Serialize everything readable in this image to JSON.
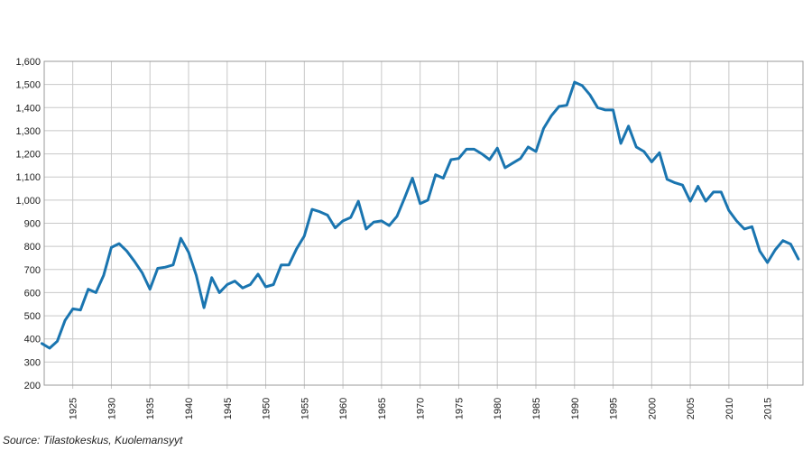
{
  "source": "Source: Tilastokeskus, Kuolemansyyt",
  "chart_data": {
    "type": "line",
    "title": "",
    "xlabel": "",
    "ylabel": "",
    "xlim": [
      1921,
      2019
    ],
    "ylim": [
      200,
      1600
    ],
    "y_ticks": [
      200,
      300,
      400,
      500,
      600,
      700,
      800,
      900,
      1000,
      1100,
      1200,
      1300,
      1400,
      1500,
      1600
    ],
    "y_tick_labels": [
      "200",
      "300",
      "400",
      "500",
      "600",
      "700",
      "800",
      "900",
      "1,000",
      "1,100",
      "1,200",
      "1,300",
      "1,400",
      "1,500",
      "1,600"
    ],
    "x_ticks": [
      1925,
      1930,
      1935,
      1940,
      1945,
      1950,
      1955,
      1960,
      1965,
      1970,
      1975,
      1980,
      1985,
      1990,
      1995,
      2000,
      2005,
      2010,
      2015
    ],
    "x_tick_labels": [
      "1925",
      "1930",
      "1935",
      "1940",
      "1945",
      "1950",
      "1955",
      "1960",
      "1965",
      "1970",
      "1975",
      "1980",
      "1985",
      "1990",
      "1995",
      "2000",
      "2005",
      "2010",
      "2015"
    ],
    "grid": true,
    "line_color": "#1a75b0",
    "series": [
      {
        "x": [
          1921,
          1922,
          1923,
          1924,
          1925,
          1926,
          1927,
          1928,
          1929,
          1930,
          1931,
          1932,
          1933,
          1934,
          1935,
          1936,
          1937,
          1938,
          1939,
          1940,
          1941,
          1942,
          1943,
          1944,
          1945,
          1946,
          1947,
          1948,
          1949,
          1950,
          1951,
          1952,
          1953,
          1954,
          1955,
          1956,
          1957,
          1958,
          1959,
          1960,
          1961,
          1962,
          1963,
          1964,
          1965,
          1966,
          1967,
          1968,
          1969,
          1970,
          1971,
          1972,
          1973,
          1974,
          1975,
          1976,
          1977,
          1978,
          1979,
          1980,
          1981,
          1982,
          1983,
          1984,
          1985,
          1986,
          1987,
          1988,
          1989,
          1990,
          1991,
          1992,
          1993,
          1994,
          1995,
          1996,
          1997,
          1998,
          1999,
          2000,
          2001,
          2002,
          2003,
          2004,
          2005,
          2006,
          2007,
          2008,
          2009,
          2010,
          2011,
          2012,
          2013,
          2014,
          2015,
          2016,
          2017,
          2018,
          2019
        ],
        "values": [
          380,
          360,
          390,
          480,
          530,
          525,
          615,
          600,
          675,
          795,
          812,
          780,
          735,
          685,
          615,
          705,
          710,
          720,
          835,
          775,
          675,
          535,
          665,
          600,
          635,
          650,
          620,
          635,
          680,
          625,
          635,
          720,
          720,
          790,
          845,
          960,
          950,
          935,
          880,
          910,
          925,
          995,
          875,
          905,
          910,
          890,
          930,
          1010,
          1095,
          985,
          1000,
          1110,
          1095,
          1175,
          1180,
          1220,
          1220,
          1200,
          1175,
          1225,
          1140,
          1160,
          1180,
          1230,
          1210,
          1310,
          1365,
          1405,
          1410,
          1510,
          1495,
          1455,
          1400,
          1390,
          1390,
          1245,
          1320,
          1230,
          1210,
          1165,
          1205,
          1090,
          1075,
          1065,
          995,
          1060,
          995,
          1035,
          1035,
          955,
          910,
          875,
          885,
          780,
          730,
          785,
          825,
          810,
          745
        ]
      }
    ]
  }
}
